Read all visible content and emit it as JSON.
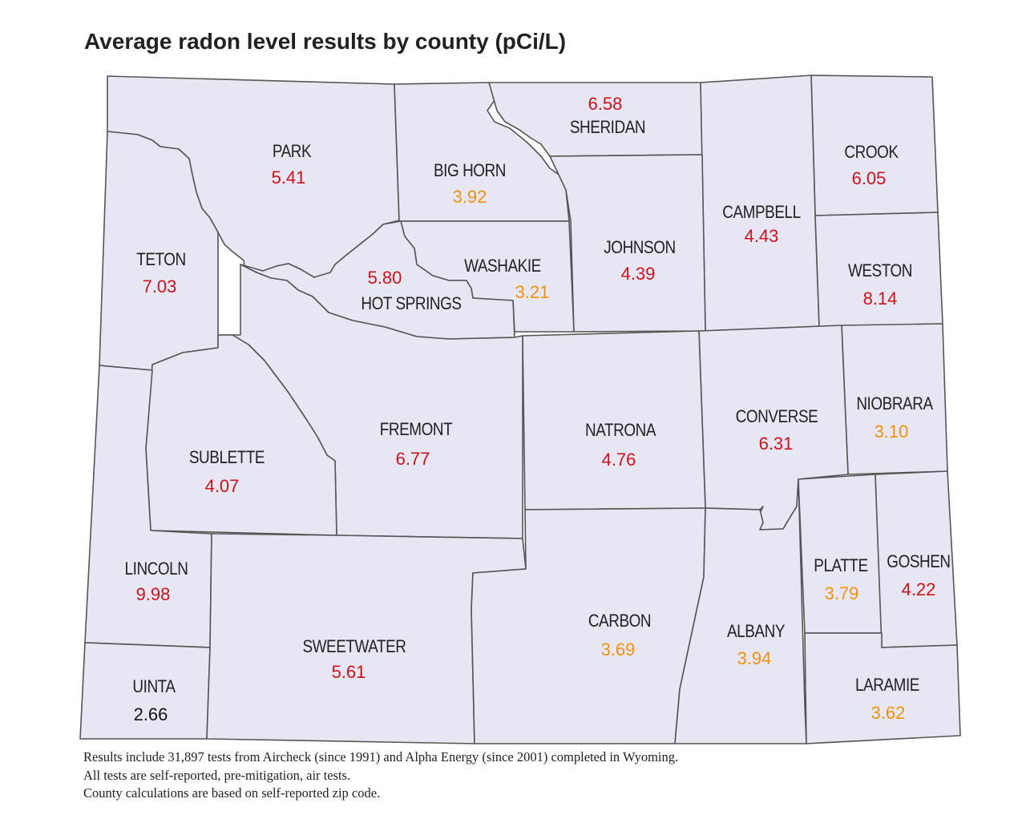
{
  "title": "Average radon level results by county (pCi/L)",
  "colors": {
    "county_fill": "#E6E7F2",
    "border": "#555555",
    "high": "#D0121B",
    "moderate": "#F0920A",
    "low": "#111111"
  },
  "counties": [
    {
      "id": "park",
      "name": "PARK",
      "value": "5.41",
      "level": "high"
    },
    {
      "id": "big-horn",
      "name": "BIG HORN",
      "value": "3.92",
      "level": "moderate"
    },
    {
      "id": "sheridan",
      "name": "SHERIDAN",
      "value": "6.58",
      "level": "high"
    },
    {
      "id": "crook",
      "name": "CROOK",
      "value": "6.05",
      "level": "high"
    },
    {
      "id": "campbell",
      "name": "CAMPBELL",
      "value": "4.43",
      "level": "high"
    },
    {
      "id": "johnson",
      "name": "JOHNSON",
      "value": "4.39",
      "level": "high"
    },
    {
      "id": "washakie",
      "name": "WASHAKIE",
      "value": "3.21",
      "level": "moderate"
    },
    {
      "id": "hot-springs",
      "name": "HOT SPRINGS",
      "value": "5.80",
      "level": "high"
    },
    {
      "id": "teton",
      "name": "TETON",
      "value": "7.03",
      "level": "high"
    },
    {
      "id": "weston",
      "name": "WESTON",
      "value": "8.14",
      "level": "high"
    },
    {
      "id": "niobrara",
      "name": "NIOBRARA",
      "value": "3.10",
      "level": "moderate"
    },
    {
      "id": "converse",
      "name": "CONVERSE",
      "value": "6.31",
      "level": "high"
    },
    {
      "id": "natrona",
      "name": "NATRONA",
      "value": "4.76",
      "level": "high"
    },
    {
      "id": "fremont",
      "name": "FREMONT",
      "value": "6.77",
      "level": "high"
    },
    {
      "id": "sublette",
      "name": "SUBLETTE",
      "value": "4.07",
      "level": "high"
    },
    {
      "id": "lincoln",
      "name": "LINCOLN",
      "value": "9.98",
      "level": "high"
    },
    {
      "id": "uinta",
      "name": "UINTA",
      "value": "2.66",
      "level": "low"
    },
    {
      "id": "sweetwater",
      "name": "SWEETWATER",
      "value": "5.61",
      "level": "high"
    },
    {
      "id": "carbon",
      "name": "CARBON",
      "value": "3.69",
      "level": "moderate"
    },
    {
      "id": "albany",
      "name": "ALBANY",
      "value": "3.94",
      "level": "moderate"
    },
    {
      "id": "platte",
      "name": "PLATTE",
      "value": "3.79",
      "level": "moderate"
    },
    {
      "id": "goshen",
      "name": "GOSHEN",
      "value": "4.22",
      "level": "high"
    },
    {
      "id": "laramie",
      "name": "LARAMIE",
      "value": "3.62",
      "level": "moderate"
    }
  ],
  "notes": [
    "Results include 31,897 tests from Aircheck (since 1991) and Alpha Energy (since 2001) completed in Wyoming.",
    "All tests are self-reported, pre-mitigation, air tests.",
    "County calculations are based on self-reported zip code."
  ]
}
